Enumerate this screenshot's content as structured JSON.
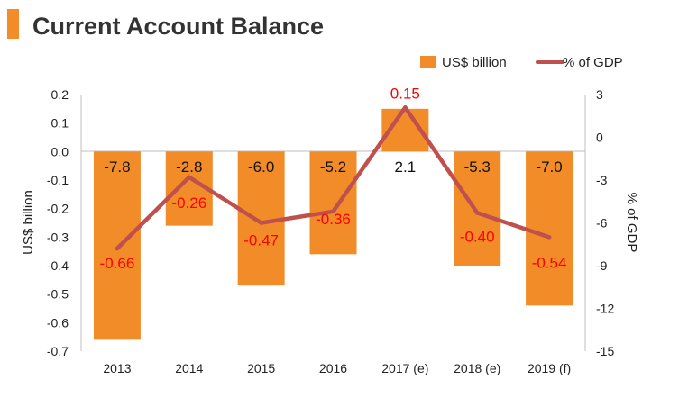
{
  "title": "Current Account Balance",
  "colors": {
    "accent": "#f28c28",
    "bar": "#f28c28",
    "line": "#c0504d",
    "line_label": "#ff0000",
    "bar_label": "#111111"
  },
  "chart_data": {
    "type": "bar",
    "title": "Current Account Balance",
    "categories": [
      "2013",
      "2014",
      "2015",
      "2016",
      "2017 (e)",
      "2018 (e)",
      "2019 (f)"
    ],
    "series": [
      {
        "name": "US$ billion",
        "type": "bar",
        "axis": "left",
        "values": [
          -7.8,
          -2.8,
          -6.0,
          -5.2,
          2.1,
          -5.3,
          -7.0
        ],
        "labels": [
          "-7.8",
          "-2.8",
          "-6.0",
          "-5.2",
          "2.1",
          "-5.3",
          "-7.0"
        ]
      },
      {
        "name": "% of GDP",
        "type": "line",
        "axis": "right",
        "values": [
          -0.66,
          -0.26,
          -0.47,
          -0.36,
          0.15,
          -0.4,
          -0.54
        ],
        "labels": [
          "-0.66",
          "-0.26",
          "-0.47",
          "-0.36",
          "0.15",
          "-0.40",
          "-0.54"
        ]
      }
    ],
    "left_axis": {
      "label": "US$ billion",
      "ylim": [
        -0.7,
        0.2
      ],
      "ticks": [
        "0.2",
        "0.1",
        "0.0",
        "-0.1",
        "-0.2",
        "-0.3",
        "-0.4",
        "-0.5",
        "-0.6",
        "-0.7"
      ]
    },
    "right_axis": {
      "label": "% of GDP",
      "ylim": [
        -15,
        3
      ],
      "ticks": [
        "3",
        "0",
        "-3",
        "-6",
        "-9",
        "-12",
        "-15"
      ]
    },
    "legend_position": "top-right",
    "grid": false
  }
}
